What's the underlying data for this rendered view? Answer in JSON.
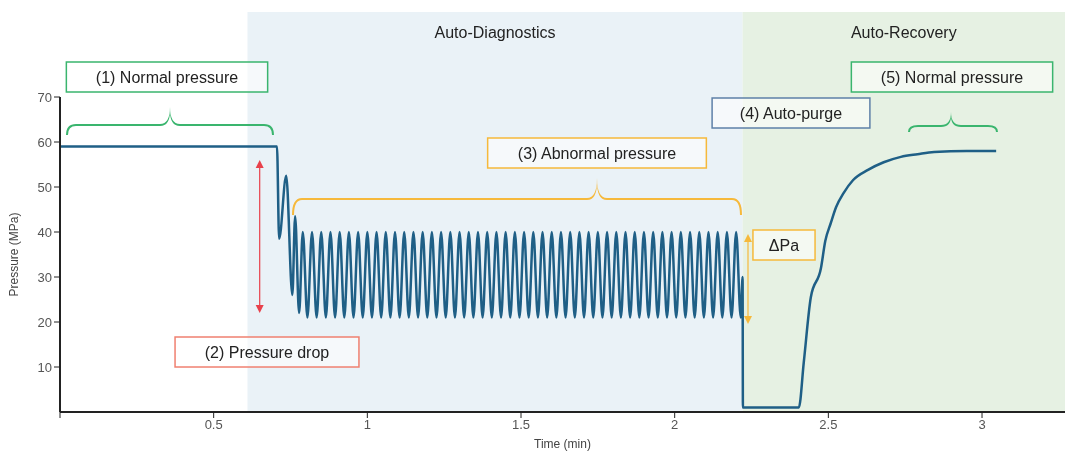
{
  "chart_data": {
    "type": "line",
    "xlabel": "Time (min)",
    "ylabel": "Pressure (MPa)",
    "xlim": [
      0,
      3.27
    ],
    "xticks": [
      {
        "value": 0,
        "label": null
      },
      0.5,
      1,
      1.5,
      2,
      2.5,
      3
    ],
    "ylim": [
      0,
      70
    ],
    "yticks": [
      10,
      20,
      30,
      40,
      50,
      60,
      70
    ],
    "bands": [
      {
        "axis": "x",
        "from": 0.61,
        "to": 2.221,
        "label": "Auto-Diagnostics",
        "color": "#eaf2f7"
      },
      {
        "axis": "x",
        "from": 2.221,
        "to": 3.27,
        "label": "Auto-Recovery",
        "color": "#e6f1e3"
      }
    ],
    "annotations": [
      "(1) Normal pressure",
      "(2) Pressure drop",
      "(3) Abnormal pressure",
      "(4) Auto-purge",
      "ΔPa",
      "(5) Normal pressure"
    ],
    "series": [
      {
        "color": "#1f5f86",
        "x": [
          0,
          0.1,
          0.2,
          0.3,
          0.4,
          0.5,
          0.6,
          0.706,
          0.713,
          0.736,
          0.756,
          0.765,
          0.778,
          0.79,
          0.805,
          0.82,
          0.835,
          0.85,
          0.865,
          0.88,
          0.895,
          0.91,
          0.925,
          0.94,
          0.955,
          0.97,
          0.985,
          1,
          1.015,
          1.03,
          1.045,
          1.06,
          1.075,
          1.09,
          1.105,
          1.12,
          1.135,
          1.15,
          1.165,
          1.18,
          1.195,
          1.21,
          1.225,
          1.24,
          1.255,
          1.27,
          1.285,
          1.3,
          1.315,
          1.33,
          1.345,
          1.36,
          1.375,
          1.39,
          1.405,
          1.42,
          1.435,
          1.45,
          1.465,
          1.48,
          1.495,
          1.51,
          1.525,
          1.54,
          1.555,
          1.57,
          1.585,
          1.6,
          1.615,
          1.63,
          1.645,
          1.66,
          1.675,
          1.69,
          1.705,
          1.72,
          1.735,
          1.75,
          1.765,
          1.78,
          1.795,
          1.81,
          1.825,
          1.84,
          1.855,
          1.87,
          1.885,
          1.9,
          1.915,
          1.93,
          1.945,
          1.96,
          1.975,
          1.99,
          2.005,
          2.02,
          2.035,
          2.05,
          2.065,
          2.08,
          2.095,
          2.11,
          2.125,
          2.14,
          2.155,
          2.17,
          2.185,
          2.2,
          2.215,
          2.221,
          2.222,
          2.404,
          2.42,
          2.443,
          2.476,
          2.49,
          2.508,
          2.525,
          2.55,
          2.58,
          2.629,
          2.68,
          2.736,
          2.79,
          2.844,
          2.95,
          3.046
        ],
        "values": [
          59,
          59,
          59,
          59,
          59,
          59,
          59,
          59,
          38.5,
          52.5,
          26,
          43.5,
          22,
          40,
          21,
          40,
          21,
          40,
          21,
          40,
          21,
          40,
          21,
          40,
          21,
          40,
          21,
          40,
          21,
          40,
          21,
          40,
          21,
          40,
          21,
          40,
          21,
          40,
          21,
          40,
          21,
          40,
          21,
          40,
          21,
          40,
          21,
          40,
          21,
          40,
          21,
          40,
          21,
          40,
          21,
          40,
          21,
          40,
          21,
          40,
          21,
          40,
          21,
          40,
          21,
          40,
          21,
          40,
          21,
          40,
          21,
          40,
          21,
          40,
          21,
          40,
          21,
          40,
          21,
          40,
          21,
          40,
          21,
          40,
          21,
          40,
          21,
          40,
          21,
          40,
          21,
          40,
          21,
          40,
          21,
          40,
          21,
          40,
          21,
          40,
          21,
          40,
          21,
          40,
          21,
          40,
          21,
          40,
          21,
          30,
          1,
          1,
          11,
          25.5,
          32,
          38,
          42,
          45.5,
          48.7,
          51.5,
          53.8,
          55.5,
          56.7,
          57.3,
          57.8,
          58,
          58
        ]
      }
    ]
  }
}
